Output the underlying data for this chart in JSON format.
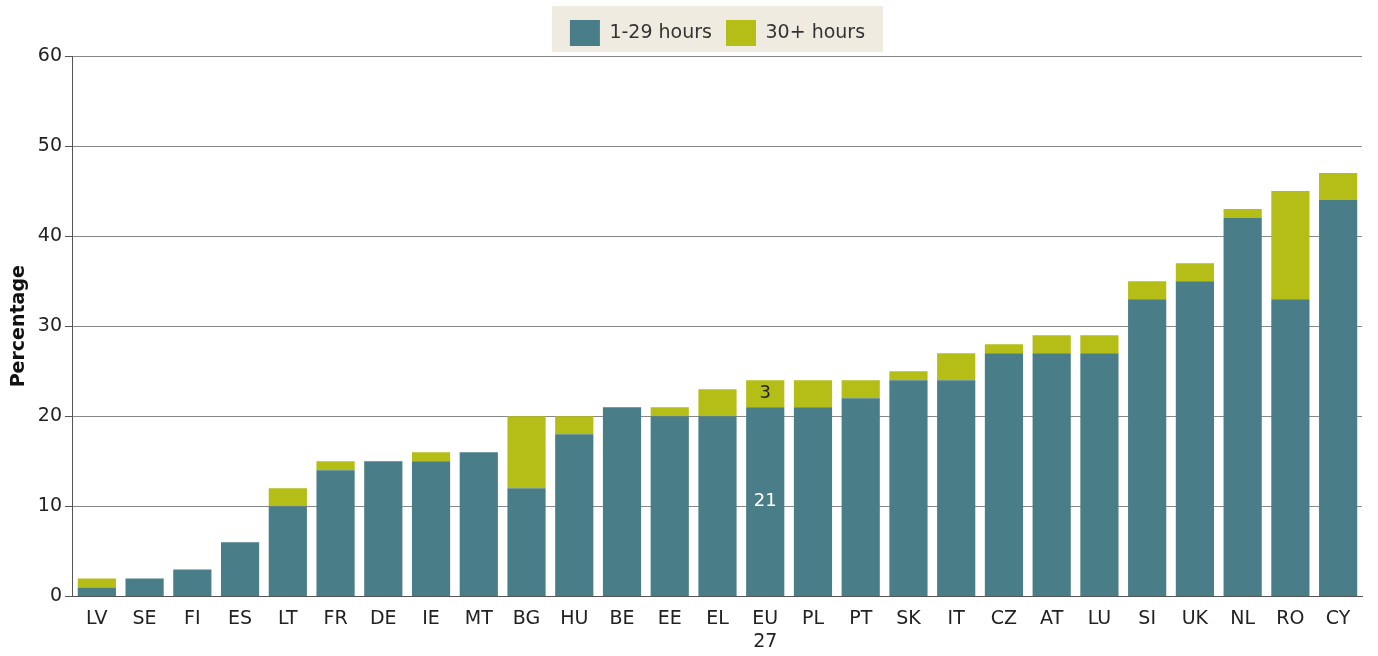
{
  "chart_data": {
    "type": "bar",
    "stacked": true,
    "ylabel": "Percentage",
    "legend": "top",
    "grid": "y",
    "categories": [
      "LV",
      "SE",
      "FI",
      "ES",
      "LT",
      "FR",
      "DE",
      "IE",
      "MT",
      "BG",
      "HU",
      "BE",
      "EE",
      "EL",
      "EU 27",
      "PL",
      "PT",
      "SK",
      "IT",
      "CZ",
      "AT",
      "LU",
      "SI",
      "UK",
      "NL",
      "RO",
      "CY"
    ],
    "ylim": [
      0,
      60
    ],
    "yticks": [
      0,
      10,
      20,
      30,
      40,
      50,
      60
    ],
    "series": [
      {
        "name": "1-29 hours",
        "color": "#497d87",
        "values": [
          1,
          2,
          3,
          6,
          10,
          14,
          15,
          15,
          16,
          12,
          18,
          21,
          20,
          20,
          21,
          21,
          22,
          24,
          24,
          27,
          27,
          27,
          33,
          35,
          42,
          33,
          44
        ],
        "value_labels": [
          null,
          null,
          null,
          null,
          null,
          null,
          null,
          null,
          null,
          null,
          null,
          null,
          null,
          null,
          "21",
          null,
          null,
          null,
          null,
          null,
          null,
          null,
          null,
          null,
          null,
          null,
          null
        ]
      },
      {
        "name": "30+ hours",
        "color": "#b5bd17",
        "values": [
          1,
          0,
          0,
          0,
          2,
          1,
          0,
          1,
          0,
          8,
          2,
          0,
          1,
          3,
          3,
          3,
          2,
          1,
          3,
          1,
          2,
          2,
          2,
          2,
          1,
          12,
          3
        ],
        "value_labels": [
          null,
          null,
          null,
          null,
          null,
          null,
          null,
          null,
          null,
          null,
          null,
          null,
          null,
          null,
          "3",
          null,
          null,
          null,
          null,
          null,
          null,
          null,
          null,
          null,
          null,
          null,
          null
        ]
      }
    ]
  }
}
